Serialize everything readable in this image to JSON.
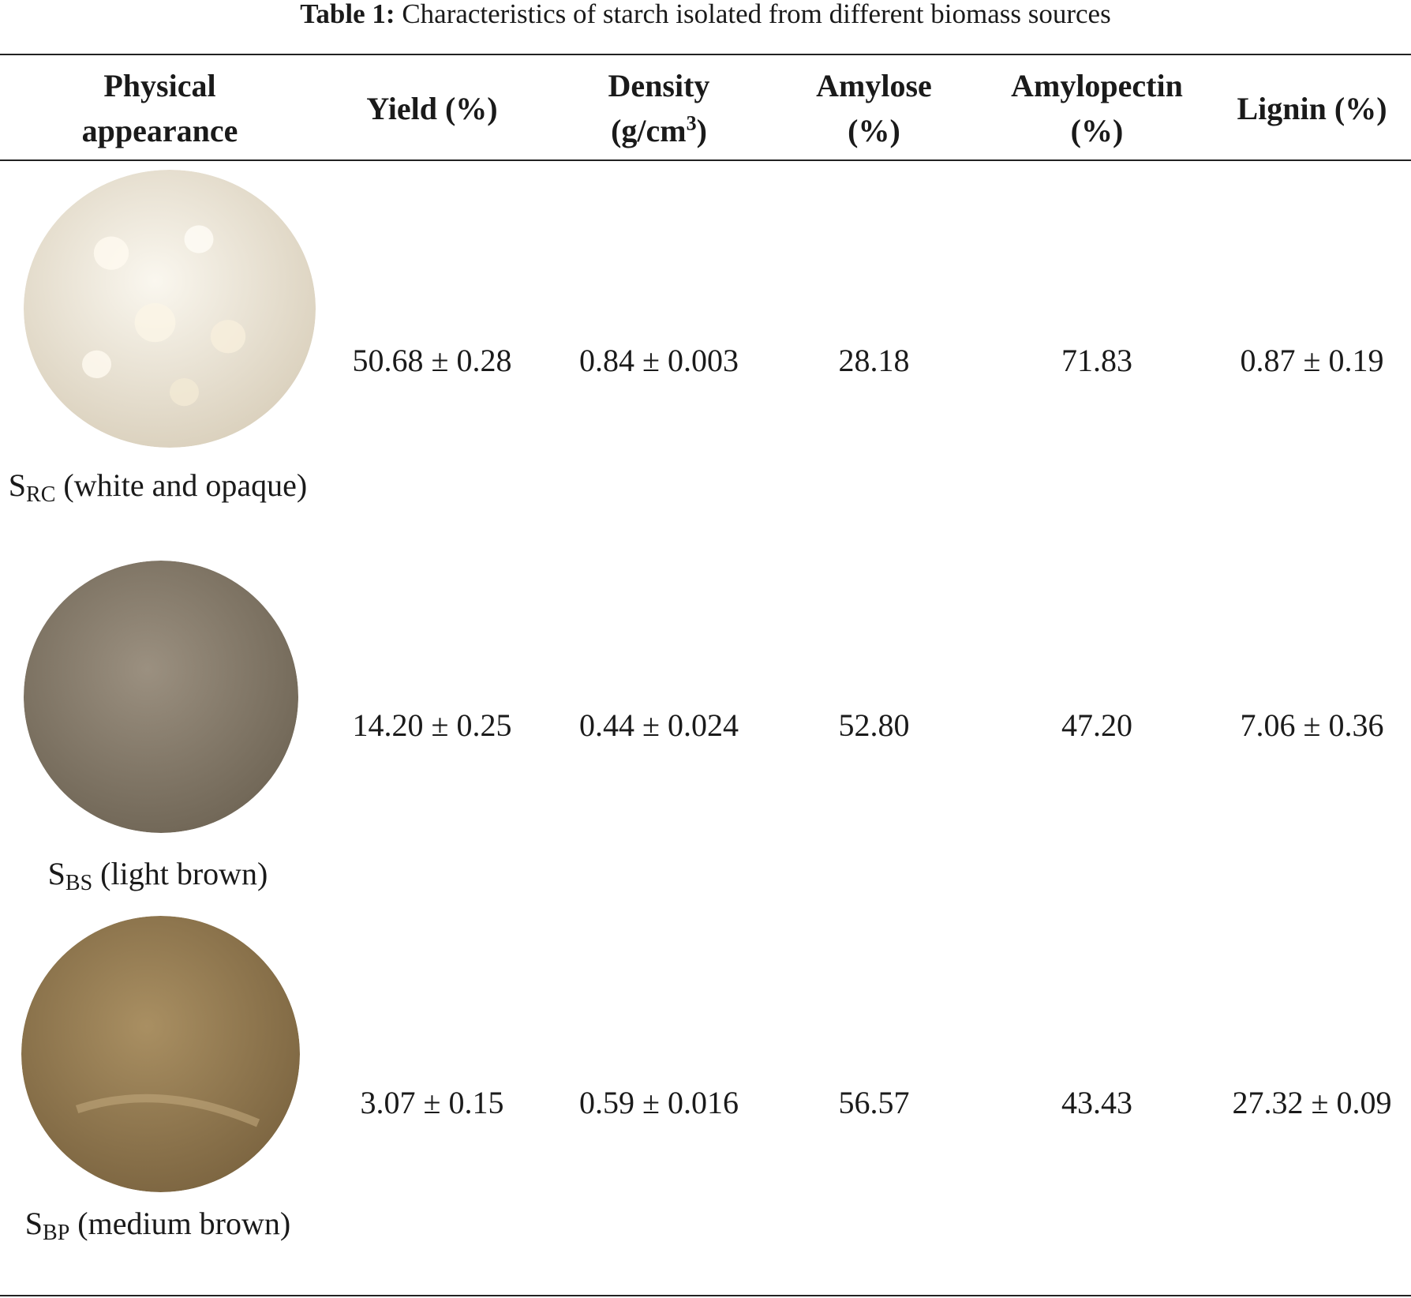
{
  "caption": {
    "label": "Table 1:",
    "text": "Characteristics of starch isolated from different biomass sources"
  },
  "headers": {
    "appearance": "Physical appearance",
    "yield": "Yield (%)",
    "density_pre": "Density (g/cm",
    "density_sup": "3",
    "density_post": ")",
    "amylose": "Amylose (%)",
    "amylopectin": "Amylopectin (%)",
    "lignin": "Lignin (%)"
  },
  "rows": [
    {
      "sample": "S",
      "sample_sub": "RC",
      "description": "(white and opaque)",
      "yield": "50.68 ± 0.28",
      "density": "0.84 ± 0.003",
      "amylose": "28.18",
      "amylopectin": "71.83",
      "lignin": "0.87 ± 0.19",
      "swatch_color": "#f1ece0",
      "swatch_shadow": "#d9cfbb"
    },
    {
      "sample": "S",
      "sample_sub": "BS",
      "description": "(light brown)",
      "yield": "14.20 ± 0.25",
      "density": "0.44 ± 0.024",
      "amylose": "52.80",
      "amylopectin": "47.20",
      "lignin": "7.06 ± 0.36",
      "swatch_color": "#8c8170",
      "swatch_shadow": "#6f6555"
    },
    {
      "sample": "S",
      "sample_sub": "BP",
      "description": "(medium brown)",
      "yield": "3.07 ± 0.15",
      "density": "0.59 ± 0.016",
      "amylose": "56.57",
      "amylopectin": "43.43",
      "lignin": "27.32 ± 0.09",
      "swatch_color": "#9c8256",
      "swatch_shadow": "#7b6440"
    }
  ]
}
